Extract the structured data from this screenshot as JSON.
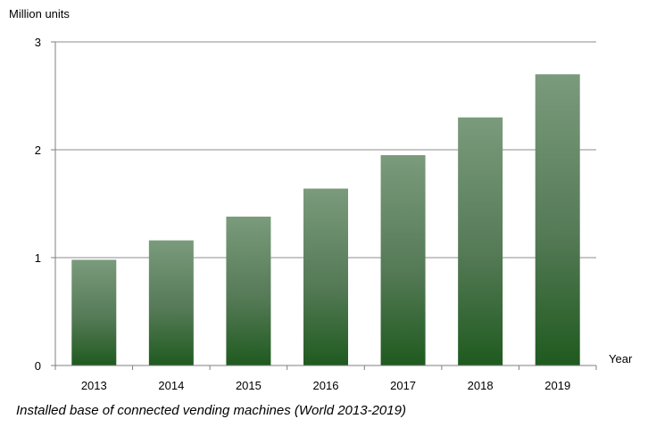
{
  "chart_data": {
    "type": "bar",
    "title": "",
    "caption": "Installed base of connected vending machines (World 2013-2019)",
    "ylabel": "Million units",
    "xlabel": "Year",
    "categories": [
      "2013",
      "2014",
      "2015",
      "2016",
      "2017",
      "2018",
      "2019"
    ],
    "values": [
      0.98,
      1.16,
      1.38,
      1.64,
      1.95,
      2.3,
      2.7
    ],
    "ylim": [
      0,
      3
    ],
    "yticks": [
      0,
      1,
      2,
      3
    ],
    "grid": true,
    "colors": {
      "bar_top": "#7a9b7c",
      "bar_bottom": "#1f5a1f",
      "grid": "#8c8c8c",
      "axis": "#7f7f7f"
    }
  }
}
